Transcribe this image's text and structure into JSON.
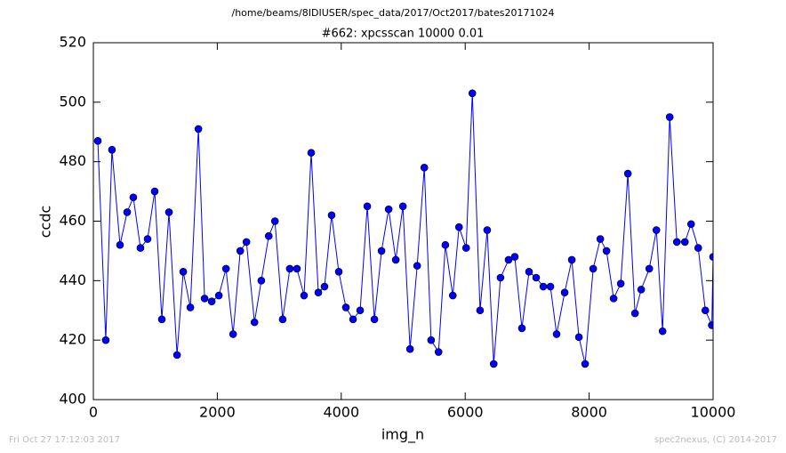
{
  "chart_data": {
    "type": "line",
    "suptitle": "/home/beams/8IDIUSER/spec_data/2017/Oct2017/bates20171024",
    "title": "#662: xpcsscan 10000 0.01",
    "xlabel": "img_n",
    "ylabel": "ccdc",
    "footer_left": "Fri Oct 27 17:12:03 2017",
    "footer_right": "spec2nexus, (C) 2014-2017",
    "color": "#0000ff",
    "marker": true,
    "x": [
      72,
      200,
      300,
      430,
      545,
      645,
      760,
      875,
      990,
      1105,
      1220,
      1350,
      1450,
      1565,
      1695,
      1795,
      1910,
      2025,
      2140,
      2255,
      2370,
      2470,
      2600,
      2710,
      2830,
      2930,
      3055,
      3170,
      3285,
      3400,
      3515,
      3630,
      3730,
      3845,
      3960,
      4075,
      4190,
      4305,
      4420,
      4535,
      4650,
      4765,
      4880,
      4995,
      5110,
      5225,
      5340,
      5450,
      5570,
      5680,
      5800,
      5900,
      6015,
      6115,
      6240,
      6355,
      6460,
      6570,
      6700,
      6800,
      6915,
      7030,
      7145,
      7260,
      7375,
      7475,
      7605,
      7720,
      7835,
      7935,
      8065,
      8180,
      8280,
      8395,
      8510,
      8625,
      8740,
      8840,
      8970,
      9085,
      9185,
      9300,
      9415,
      9545,
      9645,
      9760,
      9875,
      9980,
      10000
    ],
    "values": [
      487,
      420,
      484,
      452,
      463,
      468,
      451,
      454,
      470,
      427,
      463,
      415,
      443,
      431,
      491,
      434,
      433,
      435,
      444,
      422,
      450,
      453,
      426,
      440,
      455,
      460,
      427,
      444,
      444,
      435,
      483,
      436,
      438,
      462,
      443,
      431,
      427,
      430,
      465,
      427,
      450,
      464,
      447,
      465,
      417,
      445,
      478,
      420,
      416,
      452,
      435,
      458,
      451,
      503,
      430,
      457,
      412,
      441,
      447,
      448,
      424,
      443,
      441,
      438,
      438,
      422,
      436,
      447,
      421,
      412,
      444,
      454,
      450,
      434,
      439,
      476,
      429,
      437,
      444,
      457,
      423,
      495,
      453,
      453,
      459,
      451,
      430,
      425,
      448
    ],
    "xlim": [
      0,
      10000
    ],
    "xticks": [
      0,
      2000,
      4000,
      6000,
      8000,
      10000
    ],
    "ylim": [
      400,
      520
    ],
    "yticks": [
      400,
      420,
      440,
      460,
      480,
      500,
      520
    ]
  }
}
